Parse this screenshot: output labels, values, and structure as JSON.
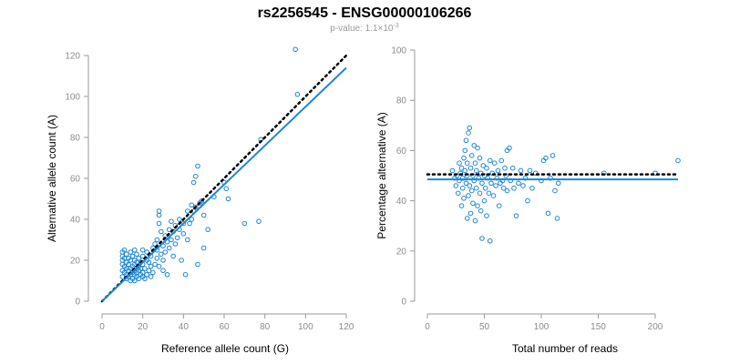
{
  "header": {
    "title": "rs2256545 - ENSG00000106266",
    "pvalue_label": "p-value: 1.1×10",
    "pvalue_exponent": "-3"
  },
  "colors": {
    "points": "#1f87d6",
    "fit": "#1f87d6",
    "reference": "#000000"
  },
  "chart_data": [
    {
      "type": "scatter",
      "xlabel": "Reference allele count (G)",
      "ylabel": "Alternative allele count (A)",
      "xlim": [
        0,
        120
      ],
      "ylim": [
        0,
        120
      ],
      "xticks": [
        0,
        20,
        40,
        60,
        80,
        100,
        120
      ],
      "yticks": [
        0,
        20,
        40,
        60,
        80,
        100,
        120
      ],
      "reference_line": {
        "style": "dotted",
        "slope": 1,
        "intercept": 0
      },
      "fit_line": {
        "style": "solid",
        "x": [
          0,
          120
        ],
        "y": [
          0,
          114
        ]
      },
      "points": [
        [
          10,
          12
        ],
        [
          10,
          15
        ],
        [
          10,
          18
        ],
        [
          10,
          20
        ],
        [
          10,
          22
        ],
        [
          10,
          24
        ],
        [
          11,
          14
        ],
        [
          11,
          17
        ],
        [
          11,
          21
        ],
        [
          11,
          25
        ],
        [
          12,
          11
        ],
        [
          12,
          13
        ],
        [
          12,
          16
        ],
        [
          12,
          19
        ],
        [
          12,
          23
        ],
        [
          13,
          12
        ],
        [
          13,
          15
        ],
        [
          13,
          18
        ],
        [
          13,
          21
        ],
        [
          14,
          10
        ],
        [
          14,
          13
        ],
        [
          14,
          16
        ],
        [
          14,
          20
        ],
        [
          14,
          24
        ],
        [
          15,
          11
        ],
        [
          15,
          14
        ],
        [
          15,
          17
        ],
        [
          15,
          22
        ],
        [
          16,
          10
        ],
        [
          16,
          13
        ],
        [
          16,
          15
        ],
        [
          16,
          18
        ],
        [
          16,
          20
        ],
        [
          16,
          25
        ],
        [
          17,
          12
        ],
        [
          17,
          14
        ],
        [
          17,
          16
        ],
        [
          17,
          19
        ],
        [
          17,
          23
        ],
        [
          18,
          11
        ],
        [
          18,
          15
        ],
        [
          18,
          17
        ],
        [
          18,
          21
        ],
        [
          19,
          13
        ],
        [
          19,
          16
        ],
        [
          19,
          19
        ],
        [
          20,
          12
        ],
        [
          20,
          14
        ],
        [
          20,
          18
        ],
        [
          20,
          22
        ],
        [
          20,
          25
        ],
        [
          21,
          11
        ],
        [
          21,
          16
        ],
        [
          22,
          13
        ],
        [
          22,
          20
        ],
        [
          22,
          24
        ],
        [
          23,
          15
        ],
        [
          23,
          19
        ],
        [
          24,
          12
        ],
        [
          24,
          17
        ],
        [
          24,
          22
        ],
        [
          25,
          26
        ],
        [
          25,
          14
        ],
        [
          26,
          18
        ],
        [
          26,
          28
        ],
        [
          27,
          21
        ],
        [
          27,
          25
        ],
        [
          27,
          30
        ],
        [
          28,
          17
        ],
        [
          28,
          38
        ],
        [
          28,
          42
        ],
        [
          28,
          44
        ],
        [
          29,
          23
        ],
        [
          29,
          34
        ],
        [
          30,
          15
        ],
        [
          30,
          20
        ],
        [
          30,
          27
        ],
        [
          31,
          24
        ],
        [
          31,
          32
        ],
        [
          32,
          29
        ],
        [
          32,
          13
        ],
        [
          33,
          35
        ],
        [
          33,
          26
        ],
        [
          34,
          39
        ],
        [
          34,
          30
        ],
        [
          35,
          22
        ],
        [
          35,
          34
        ],
        [
          36,
          28
        ],
        [
          36,
          37
        ],
        [
          37,
          31
        ],
        [
          38,
          35
        ],
        [
          38,
          40
        ],
        [
          39,
          20
        ],
        [
          40,
          33
        ],
        [
          40,
          38
        ],
        [
          41,
          13
        ],
        [
          42,
          44
        ],
        [
          42,
          30
        ],
        [
          43,
          38
        ],
        [
          44,
          40
        ],
        [
          44,
          47
        ],
        [
          45,
          44
        ],
        [
          45,
          58
        ],
        [
          46,
          46
        ],
        [
          46,
          61
        ],
        [
          47,
          66
        ],
        [
          47,
          18
        ],
        [
          48,
          48
        ],
        [
          49,
          49
        ],
        [
          50,
          26
        ],
        [
          50,
          42
        ],
        [
          52,
          35
        ],
        [
          55,
          51
        ],
        [
          60,
          58
        ],
        [
          61,
          55
        ],
        [
          62,
          50
        ],
        [
          70,
          38
        ],
        [
          77,
          39
        ],
        [
          78,
          79
        ],
        [
          95,
          123
        ],
        [
          96,
          101
        ]
      ]
    },
    {
      "type": "scatter",
      "xlabel": "Total number of reads",
      "ylabel": "Percentage alternative (A)",
      "xlim": [
        0,
        220
      ],
      "ylim": [
        0,
        100
      ],
      "xticks": [
        0,
        50,
        100,
        150,
        200
      ],
      "yticks": [
        0,
        20,
        40,
        60,
        80,
        100
      ],
      "reference_line": {
        "style": "dotted",
        "y": 50.5
      },
      "fit_line": {
        "style": "solid",
        "y": 48.5
      },
      "points": [
        [
          22,
          52
        ],
        [
          24,
          49
        ],
        [
          25,
          46
        ],
        [
          26,
          50
        ],
        [
          27,
          43
        ],
        [
          28,
          55
        ],
        [
          28,
          48
        ],
        [
          29,
          51
        ],
        [
          30,
          38
        ],
        [
          30,
          53
        ],
        [
          31,
          45
        ],
        [
          31,
          49
        ],
        [
          32,
          57
        ],
        [
          32,
          41
        ],
        [
          33,
          60
        ],
        [
          33,
          52
        ],
        [
          34,
          47
        ],
        [
          34,
          64
        ],
        [
          35,
          33
        ],
        [
          35,
          50
        ],
        [
          35,
          55
        ],
        [
          36,
          42
        ],
        [
          36,
          67
        ],
        [
          37,
          46
        ],
        [
          37,
          69
        ],
        [
          38,
          35
        ],
        [
          38,
          53
        ],
        [
          39,
          44
        ],
        [
          39,
          58
        ],
        [
          40,
          50
        ],
        [
          40,
          39
        ],
        [
          41,
          62
        ],
        [
          41,
          48
        ],
        [
          42,
          55
        ],
        [
          42,
          32
        ],
        [
          43,
          45
        ],
        [
          43,
          52
        ],
        [
          44,
          61
        ],
        [
          44,
          38
        ],
        [
          45,
          49
        ],
        [
          46,
          57
        ],
        [
          46,
          43
        ],
        [
          47,
          51
        ],
        [
          47,
          36
        ],
        [
          48,
          47
        ],
        [
          48,
          25
        ],
        [
          49,
          54
        ],
        [
          50,
          40
        ],
        [
          50,
          50
        ],
        [
          51,
          45
        ],
        [
          52,
          53
        ],
        [
          52,
          34
        ],
        [
          53,
          49
        ],
        [
          54,
          43
        ],
        [
          55,
          24
        ],
        [
          55,
          56
        ],
        [
          56,
          47
        ],
        [
          57,
          51
        ],
        [
          58,
          42
        ],
        [
          59,
          55
        ],
        [
          60,
          46
        ],
        [
          61,
          49
        ],
        [
          62,
          52
        ],
        [
          63,
          38
        ],
        [
          64,
          47
        ],
        [
          65,
          56
        ],
        [
          66,
          48
        ],
        [
          67,
          45
        ],
        [
          68,
          53
        ],
        [
          69,
          50
        ],
        [
          70,
          44
        ],
        [
          70,
          60
        ],
        [
          72,
          61
        ],
        [
          73,
          48
        ],
        [
          75,
          53
        ],
        [
          76,
          45
        ],
        [
          78,
          34
        ],
        [
          80,
          47
        ],
        [
          82,
          52
        ],
        [
          84,
          46
        ],
        [
          86,
          49
        ],
        [
          88,
          40
        ],
        [
          90,
          52
        ],
        [
          92,
          45
        ],
        [
          95,
          51
        ],
        [
          100,
          48
        ],
        [
          102,
          56
        ],
        [
          104,
          57
        ],
        [
          106,
          35
        ],
        [
          108,
          49
        ],
        [
          110,
          58
        ],
        [
          112,
          44
        ],
        [
          114,
          33
        ],
        [
          115,
          47
        ],
        [
          155,
          51
        ],
        [
          200,
          51
        ],
        [
          220,
          56
        ]
      ]
    }
  ]
}
